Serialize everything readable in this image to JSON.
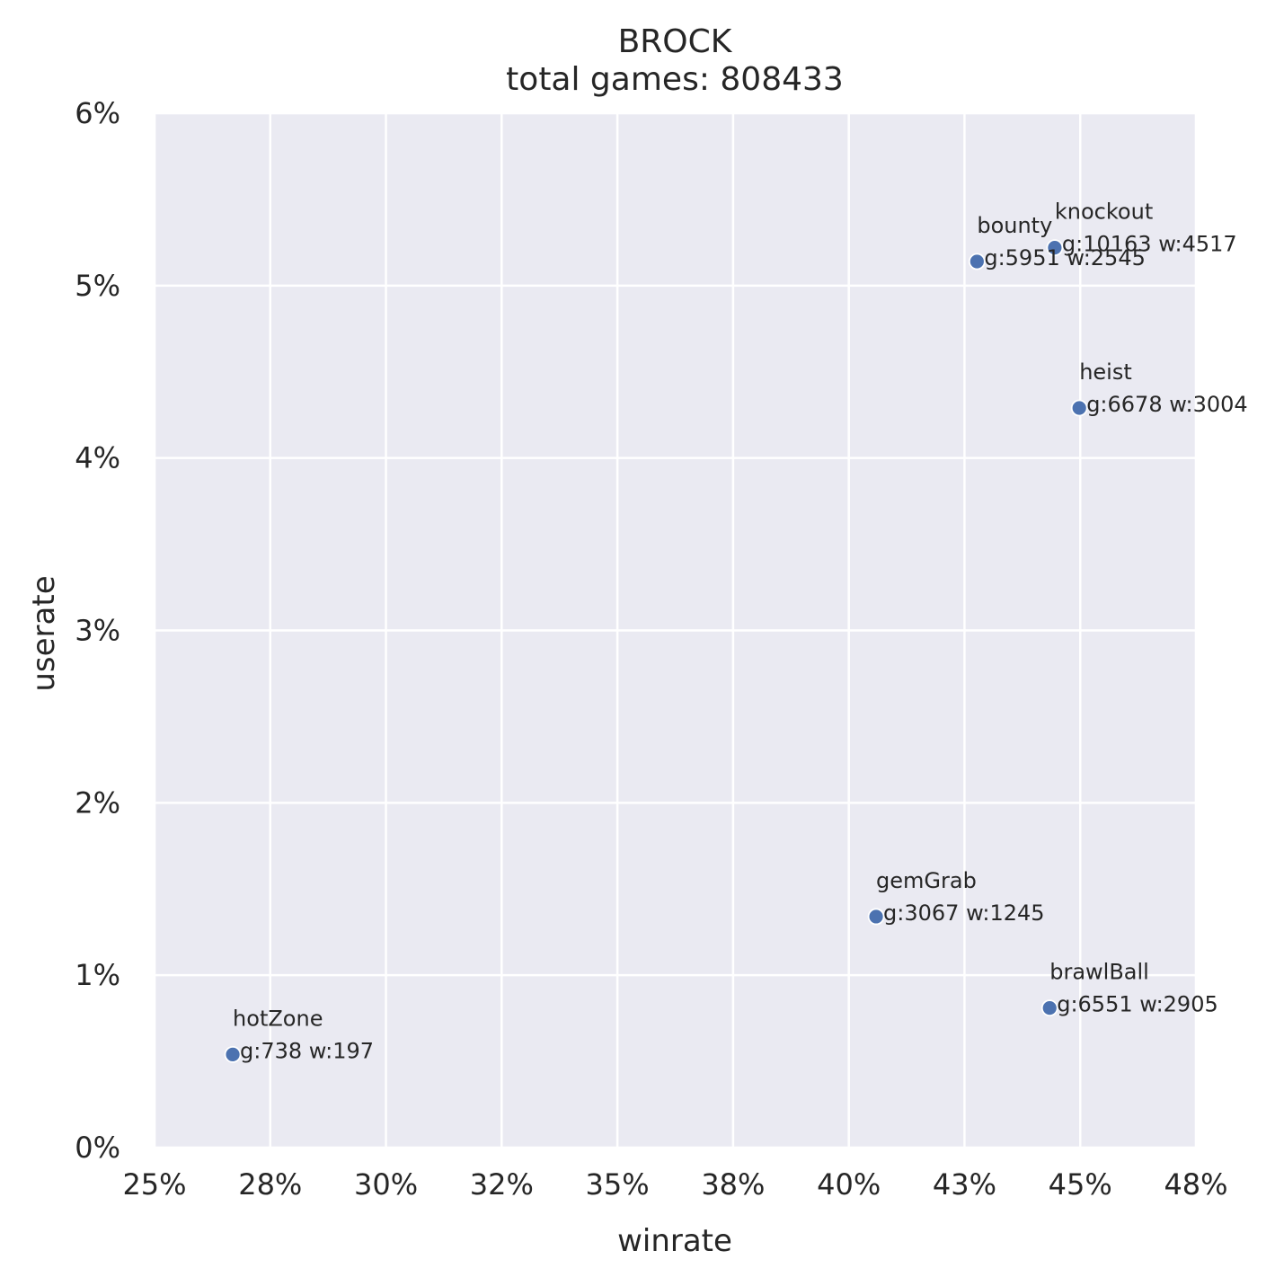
{
  "chart_data": {
    "type": "scatter",
    "title": "BROCK",
    "subtitle": "total games: 808433",
    "xlabel": "winrate",
    "ylabel": "userate",
    "xlim": [
      0.25,
      0.475
    ],
    "ylim": [
      0,
      0.06
    ],
    "x_ticks": [
      0.25,
      0.275,
      0.3,
      0.325,
      0.35,
      0.375,
      0.4,
      0.425,
      0.45,
      0.475
    ],
    "x_tick_labels": [
      "25%",
      "28%",
      "30%",
      "32%",
      "35%",
      "38%",
      "40%",
      "43%",
      "45%",
      "48%"
    ],
    "y_ticks": [
      0,
      0.01,
      0.02,
      0.03,
      0.04,
      0.05,
      0.06
    ],
    "y_tick_labels": [
      "0%",
      "1%",
      "2%",
      "3%",
      "4%",
      "5%",
      "6%"
    ],
    "grid": true,
    "colors": {
      "background": "#eaeaf2",
      "grid": "#ffffff",
      "point": "#4c72b0"
    },
    "points": [
      {
        "name": "knockout",
        "x": 0.4445,
        "y": 0.0522,
        "info": "g:10163 w:4517"
      },
      {
        "name": "bounty",
        "x": 0.4277,
        "y": 0.0514,
        "info": "g:5951 w:2545"
      },
      {
        "name": "heist",
        "x": 0.4498,
        "y": 0.0429,
        "info": "g:6678 w:3004"
      },
      {
        "name": "gemGrab",
        "x": 0.4059,
        "y": 0.0134,
        "info": "g:3067 w:1245"
      },
      {
        "name": "brawlBall",
        "x": 0.4434,
        "y": 0.0081,
        "info": "g:6551 w:2905"
      },
      {
        "name": "hotZone",
        "x": 0.2669,
        "y": 0.0054,
        "info": "g:738 w:197"
      }
    ]
  }
}
